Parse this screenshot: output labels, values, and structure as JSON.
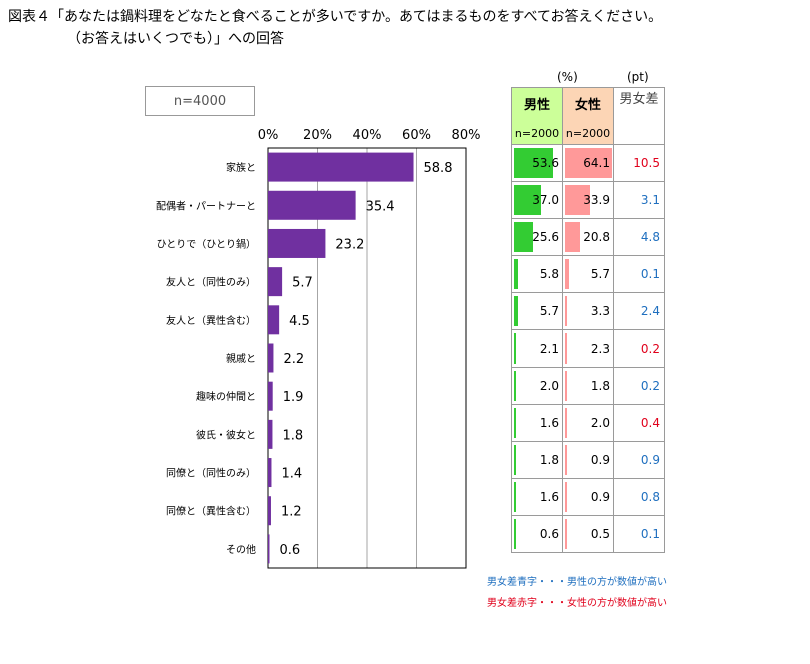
{
  "title_line1": "図表４「あなたは鍋料理をどなたと食べることが多いですか。あてはまるものをすべてお答えください。",
  "title_line2": "（お答えはいくつでも）」への回答",
  "sample_label": "n=4000",
  "chart_data": {
    "type": "bar",
    "orientation": "horizontal",
    "categories": [
      "家族と",
      "配偶者・パートナーと",
      "ひとりで（ひとり鍋）",
      "友人と（同性のみ）",
      "友人と（異性含む）",
      "親戚と",
      "趣味の仲間と",
      "彼氏・彼女と",
      "同僚と（同性のみ）",
      "同僚と（異性含む）",
      "その他"
    ],
    "values": [
      58.8,
      35.4,
      23.2,
      5.7,
      4.5,
      2.2,
      1.9,
      1.8,
      1.4,
      1.2,
      0.6
    ],
    "value_labels": [
      "58.8",
      "35.4",
      "23.2",
      "5.7",
      "4.5",
      "2.2",
      "1.9",
      "1.8",
      "1.4",
      "1.2",
      "0.6"
    ],
    "xlim": [
      0,
      80
    ],
    "xticks": [
      "0%",
      "20%",
      "40%",
      "60%",
      "80%"
    ],
    "grid": true,
    "bar_color": "#7030a0"
  },
  "table": {
    "unit_pct": "(%)",
    "unit_pt": "(pt)",
    "male_header": "男性",
    "female_header": "女性",
    "male_n": "n=2000",
    "female_n": "n=2000",
    "diff_header": "男女差",
    "male_values": [
      53.6,
      37.0,
      25.6,
      5.8,
      5.7,
      2.1,
      2.0,
      1.6,
      1.8,
      1.6,
      0.6
    ],
    "female_values": [
      64.1,
      33.9,
      20.8,
      5.7,
      3.3,
      2.3,
      1.8,
      2.0,
      0.9,
      0.9,
      0.5
    ],
    "male_labels": [
      "53.6",
      "37.0",
      "25.6",
      "5.8",
      "5.7",
      "2.1",
      "2.0",
      "1.6",
      "1.8",
      "1.6",
      "0.6"
    ],
    "female_labels": [
      "64.1",
      "33.9",
      "20.8",
      "5.7",
      "3.3",
      "2.3",
      "1.8",
      "2.0",
      "0.9",
      "0.9",
      "0.5"
    ],
    "diff_labels": [
      "10.5",
      "3.1",
      "4.8",
      "0.1",
      "2.4",
      "0.2",
      "0.2",
      "0.4",
      "0.9",
      "0.8",
      "0.1"
    ],
    "diff_colors": [
      "red",
      "blue",
      "blue",
      "blue",
      "blue",
      "red",
      "blue",
      "red",
      "blue",
      "blue",
      "blue"
    ],
    "male_bar_color": "#33cc33",
    "female_bar_color": "#ff9999",
    "blue_color": "#1f6fbf",
    "red_color": "#e0001b"
  },
  "notes": {
    "blue": "男女差青字・・・男性の方が数値が高い",
    "red": "男女差赤字・・・女性の方が数値が高い"
  }
}
